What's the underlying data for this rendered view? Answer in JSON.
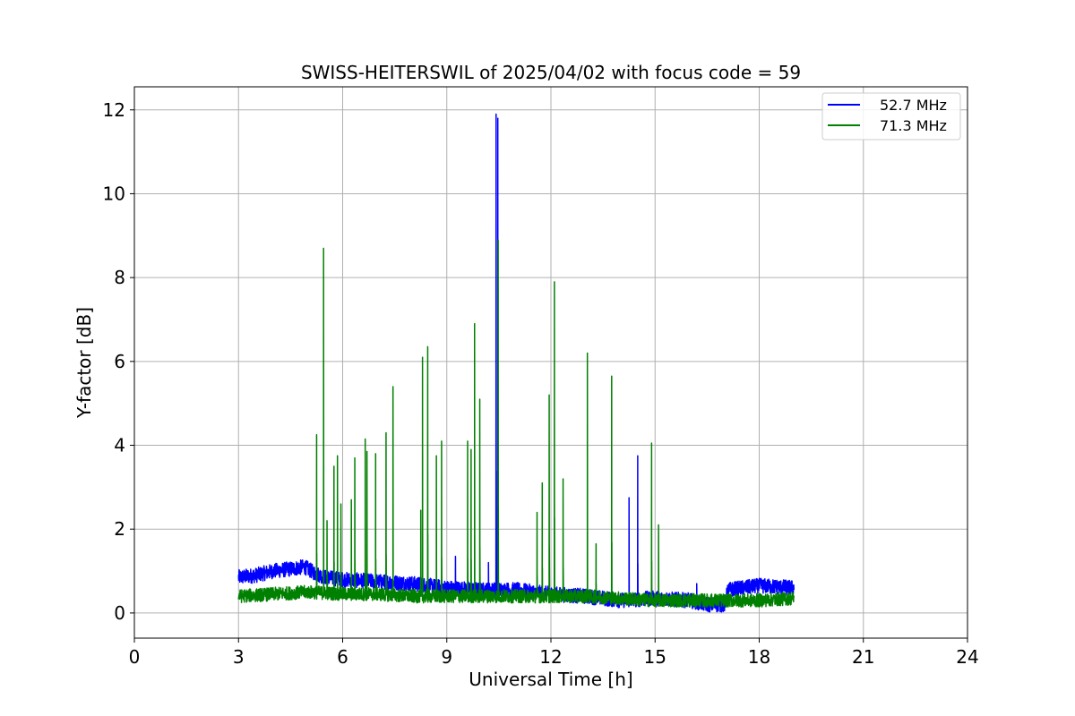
{
  "chart_data": {
    "type": "line",
    "title": "SWISS-HEITERSWIL of 2025/04/02 with focus code = 59",
    "xlabel": "Universal Time [h]",
    "ylabel": "Y-factor [dB]",
    "xlim": [
      0,
      24
    ],
    "ylim": [
      -0.6,
      12.55
    ],
    "xticks": [
      0,
      3,
      6,
      9,
      12,
      15,
      18,
      21,
      24
    ],
    "yticks": [
      0,
      2,
      4,
      6,
      8,
      10,
      12
    ],
    "grid": true,
    "legend_position": "top-right",
    "series": [
      {
        "name": "52.7 MHz",
        "color": "#0000ff",
        "baseline": [
          [
            3.0,
            0.85
          ],
          [
            3.5,
            0.9
          ],
          [
            4.0,
            1.0
          ],
          [
            4.5,
            1.05
          ],
          [
            4.9,
            1.1
          ],
          [
            5.2,
            0.95
          ],
          [
            5.5,
            0.85
          ],
          [
            6.0,
            0.8
          ],
          [
            7.0,
            0.75
          ],
          [
            8.0,
            0.7
          ],
          [
            9.0,
            0.6
          ],
          [
            10.0,
            0.55
          ],
          [
            11.0,
            0.55
          ],
          [
            12.0,
            0.45
          ],
          [
            13.0,
            0.4
          ],
          [
            14.0,
            0.3
          ],
          [
            15.0,
            0.35
          ],
          [
            16.0,
            0.3
          ],
          [
            16.5,
            0.2
          ],
          [
            17.0,
            0.2
          ],
          [
            17.1,
            0.55
          ],
          [
            18.0,
            0.65
          ],
          [
            19.0,
            0.6
          ]
        ],
        "noise": 0.18,
        "spikes": [
          [
            9.25,
            1.35
          ],
          [
            10.2,
            1.2
          ],
          [
            10.42,
            11.9
          ],
          [
            10.47,
            11.8
          ],
          [
            14.25,
            2.75
          ],
          [
            14.5,
            3.75
          ],
          [
            16.2,
            0.7
          ]
        ]
      },
      {
        "name": "71.3 MHz",
        "color": "#008000",
        "baseline": [
          [
            3.0,
            0.4
          ],
          [
            4.0,
            0.45
          ],
          [
            5.0,
            0.5
          ],
          [
            6.0,
            0.45
          ],
          [
            7.0,
            0.45
          ],
          [
            8.0,
            0.4
          ],
          [
            9.0,
            0.4
          ],
          [
            10.0,
            0.4
          ],
          [
            11.0,
            0.4
          ],
          [
            12.0,
            0.4
          ],
          [
            13.0,
            0.4
          ],
          [
            14.0,
            0.35
          ],
          [
            15.0,
            0.3
          ],
          [
            16.0,
            0.3
          ],
          [
            17.0,
            0.3
          ],
          [
            18.0,
            0.3
          ],
          [
            19.0,
            0.35
          ]
        ],
        "noise": 0.16,
        "spikes": [
          [
            5.25,
            4.25
          ],
          [
            5.45,
            8.7
          ],
          [
            5.55,
            2.2
          ],
          [
            5.75,
            3.5
          ],
          [
            5.85,
            3.75
          ],
          [
            5.95,
            2.6
          ],
          [
            6.25,
            2.7
          ],
          [
            6.35,
            3.7
          ],
          [
            6.65,
            4.15
          ],
          [
            6.7,
            3.85
          ],
          [
            6.95,
            3.8
          ],
          [
            7.25,
            4.3
          ],
          [
            7.45,
            5.4
          ],
          [
            8.25,
            2.45
          ],
          [
            8.3,
            6.1
          ],
          [
            8.45,
            6.35
          ],
          [
            8.7,
            3.75
          ],
          [
            8.85,
            4.1
          ],
          [
            9.6,
            4.1
          ],
          [
            9.7,
            3.9
          ],
          [
            9.8,
            6.9
          ],
          [
            9.95,
            5.1
          ],
          [
            10.48,
            8.9
          ],
          [
            11.6,
            2.4
          ],
          [
            11.75,
            3.1
          ],
          [
            11.95,
            5.2
          ],
          [
            12.1,
            7.9
          ],
          [
            12.35,
            3.2
          ],
          [
            13.05,
            6.2
          ],
          [
            13.3,
            1.65
          ],
          [
            13.75,
            5.65
          ],
          [
            14.9,
            4.05
          ],
          [
            15.1,
            2.1
          ]
        ]
      }
    ]
  }
}
